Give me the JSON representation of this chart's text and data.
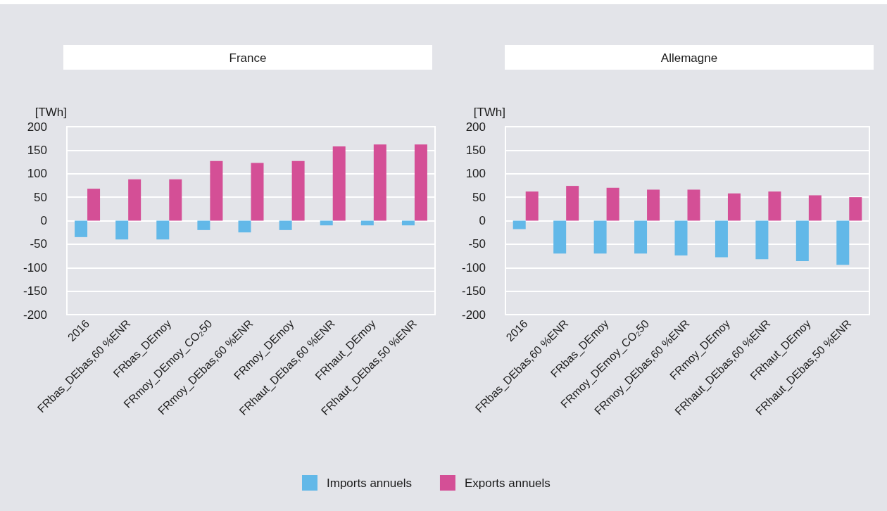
{
  "chart_data": [
    {
      "type": "bar",
      "title": "France",
      "ylabel": "[TWh]",
      "categories": [
        "2016",
        "FRbas_DEbas,60 %ENR",
        "FRbas_DEmoy",
        "FRmoy_DEmoy_CO₂50",
        "FRmoy_DEbas,60 %ENR",
        "FRmoy_DEmoy",
        "FRhaut_DEbas,60 %ENR",
        "FRhaut_DEmoy",
        "FRhaut_DEbas,50 %ENR"
      ],
      "series": [
        {
          "name": "Imports annuels",
          "color": "#62b8e8",
          "values": [
            -35,
            -40,
            -40,
            -20,
            -25,
            -20,
            -10,
            -10,
            -10
          ]
        },
        {
          "name": "Exports annuels",
          "color": "#d44f96",
          "values": [
            68,
            88,
            88,
            127,
            123,
            127,
            158,
            162,
            162
          ]
        }
      ],
      "ylim": [
        -200,
        200
      ],
      "yticks": [
        -200,
        -150,
        -100,
        -50,
        0,
        50,
        100,
        150,
        200
      ],
      "grid": "y",
      "legend": "bottom"
    },
    {
      "type": "bar",
      "title": "Allemagne",
      "ylabel": "[TWh]",
      "categories": [
        "2016",
        "FRbas_DEbas,60 %ENR",
        "FRbas_DEmoy",
        "FRmoy_DEmoy_CO₂50",
        "FRmoy_DEbas,60 %ENR",
        "FRmoy_DEmoy",
        "FRhaut_DEbas,60 %ENR",
        "FRhaut_DEmoy",
        "FRhaut_DEbas,50 %ENR"
      ],
      "series": [
        {
          "color": "#62b8e8",
          "values": [
            -18,
            -70,
            -70,
            -70,
            -74,
            -78,
            -82,
            -86,
            -94
          ]
        },
        {
          "color": "#d44f96",
          "values": [
            62,
            74,
            70,
            66,
            66,
            58,
            62,
            54,
            50
          ]
        }
      ],
      "ylim": [
        -200,
        200
      ],
      "yticks": [
        -200,
        -150,
        -100,
        -50,
        0,
        50,
        100,
        150,
        200
      ],
      "grid": "y"
    }
  ]
}
